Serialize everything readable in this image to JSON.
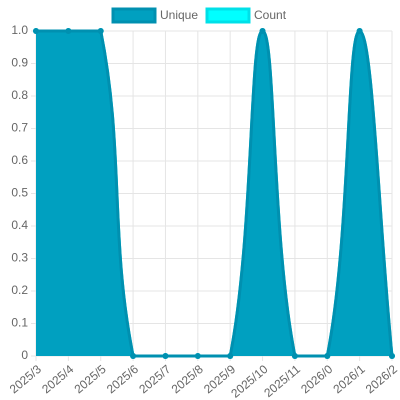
{
  "chart_data": {
    "type": "line",
    "categories": [
      "2025/3",
      "2025/4",
      "2025/5",
      "2025/6",
      "2025/7",
      "2025/8",
      "2025/9",
      "2025/10",
      "2025/11",
      "2026/0",
      "2026/1",
      "2026/2"
    ],
    "series": [
      {
        "name": "Unique",
        "color": "#00a0c0",
        "border": "#0090b0",
        "values": [
          1,
          1,
          1,
          0,
          0,
          0,
          0,
          1,
          0,
          0,
          1,
          0
        ]
      },
      {
        "name": "Count",
        "color": "#00ffff",
        "border": "#00e0e8",
        "values": [
          1,
          1,
          1,
          0,
          0,
          0,
          0,
          1,
          0,
          0,
          1,
          0
        ]
      }
    ],
    "ylim": [
      0,
      1
    ],
    "yticks": [
      0,
      0.1,
      0.2,
      0.3,
      0.4,
      0.5,
      0.6,
      0.7,
      0.8,
      0.9,
      {
        "value": 1,
        "label": "1.0"
      }
    ],
    "grid": true,
    "fill": true,
    "legend": "top"
  }
}
